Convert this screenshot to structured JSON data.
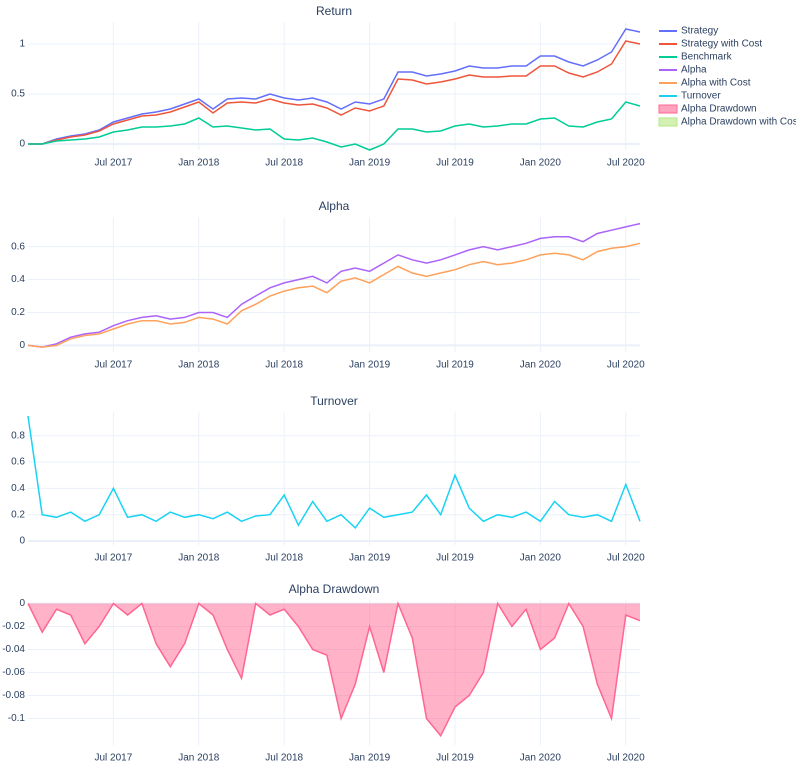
{
  "chart_data": [
    {
      "type": "line",
      "title": "Return",
      "x": [
        "2017-01",
        "2017-02",
        "2017-03",
        "2017-04",
        "2017-05",
        "2017-06",
        "2017-07",
        "2017-08",
        "2017-09",
        "2017-10",
        "2017-11",
        "2017-12",
        "2018-01",
        "2018-02",
        "2018-03",
        "2018-04",
        "2018-05",
        "2018-06",
        "2018-07",
        "2018-08",
        "2018-09",
        "2018-10",
        "2018-11",
        "2018-12",
        "2019-01",
        "2019-02",
        "2019-03",
        "2019-04",
        "2019-05",
        "2019-06",
        "2019-07",
        "2019-08",
        "2019-09",
        "2019-10",
        "2019-11",
        "2019-12",
        "2020-01",
        "2020-02",
        "2020-03",
        "2020-04",
        "2020-05",
        "2020-06",
        "2020-07",
        "2020-08"
      ],
      "series": [
        {
          "name": "Strategy",
          "color": "#636efa",
          "values": [
            0.0,
            0.0,
            0.05,
            0.08,
            0.1,
            0.14,
            0.22,
            0.26,
            0.3,
            0.32,
            0.35,
            0.4,
            0.45,
            0.35,
            0.45,
            0.46,
            0.45,
            0.5,
            0.46,
            0.44,
            0.46,
            0.42,
            0.35,
            0.42,
            0.4,
            0.45,
            0.72,
            0.72,
            0.68,
            0.7,
            0.73,
            0.78,
            0.76,
            0.76,
            0.78,
            0.78,
            0.88,
            0.88,
            0.82,
            0.78,
            0.84,
            0.92,
            1.15,
            1.12
          ]
        },
        {
          "name": "Strategy with Cost",
          "color": "#EF553B",
          "values": [
            0.0,
            0.0,
            0.04,
            0.07,
            0.09,
            0.13,
            0.2,
            0.24,
            0.28,
            0.29,
            0.32,
            0.37,
            0.42,
            0.31,
            0.41,
            0.42,
            0.41,
            0.45,
            0.41,
            0.39,
            0.4,
            0.36,
            0.29,
            0.36,
            0.33,
            0.38,
            0.65,
            0.64,
            0.6,
            0.62,
            0.65,
            0.69,
            0.67,
            0.67,
            0.68,
            0.68,
            0.78,
            0.78,
            0.71,
            0.67,
            0.72,
            0.8,
            1.03,
            1.0
          ]
        },
        {
          "name": "Benchmark",
          "color": "#00cc96",
          "values": [
            0.0,
            0.0,
            0.03,
            0.04,
            0.05,
            0.07,
            0.12,
            0.14,
            0.17,
            0.17,
            0.18,
            0.2,
            0.26,
            0.17,
            0.18,
            0.16,
            0.14,
            0.15,
            0.05,
            0.04,
            0.06,
            0.02,
            -0.03,
            0.0,
            -0.06,
            0.0,
            0.15,
            0.15,
            0.12,
            0.13,
            0.18,
            0.2,
            0.17,
            0.18,
            0.2,
            0.2,
            0.25,
            0.26,
            0.18,
            0.17,
            0.22,
            0.25,
            0.42,
            0.38
          ]
        }
      ],
      "xlim": [
        "2017-01",
        "2020-08"
      ],
      "xticks": [
        {
          "value": "2017-07",
          "label": "Jul 2017"
        },
        {
          "value": "2018-01",
          "label": "Jan 2018"
        },
        {
          "value": "2018-07",
          "label": "Jul 2018"
        },
        {
          "value": "2019-01",
          "label": "Jan 2019"
        },
        {
          "value": "2019-07",
          "label": "Jul 2019"
        },
        {
          "value": "2020-01",
          "label": "Jan 2020"
        },
        {
          "value": "2020-07",
          "label": "Jul 2020"
        }
      ],
      "ylim": [
        -0.06,
        1.22
      ],
      "yticks": [
        0,
        0.5,
        1
      ],
      "grid": true
    },
    {
      "type": "line",
      "title": "Alpha",
      "x": [
        "2017-01",
        "2017-02",
        "2017-03",
        "2017-04",
        "2017-05",
        "2017-06",
        "2017-07",
        "2017-08",
        "2017-09",
        "2017-10",
        "2017-11",
        "2017-12",
        "2018-01",
        "2018-02",
        "2018-03",
        "2018-04",
        "2018-05",
        "2018-06",
        "2018-07",
        "2018-08",
        "2018-09",
        "2018-10",
        "2018-11",
        "2018-12",
        "2019-01",
        "2019-02",
        "2019-03",
        "2019-04",
        "2019-05",
        "2019-06",
        "2019-07",
        "2019-08",
        "2019-09",
        "2019-10",
        "2019-11",
        "2019-12",
        "2020-01",
        "2020-02",
        "2020-03",
        "2020-04",
        "2020-05",
        "2020-06",
        "2020-07",
        "2020-08"
      ],
      "series": [
        {
          "name": "Alpha",
          "color": "#ab63fa",
          "values": [
            0.0,
            -0.01,
            0.01,
            0.05,
            0.07,
            0.08,
            0.12,
            0.15,
            0.17,
            0.18,
            0.16,
            0.17,
            0.2,
            0.2,
            0.17,
            0.25,
            0.3,
            0.35,
            0.38,
            0.4,
            0.42,
            0.38,
            0.45,
            0.47,
            0.45,
            0.5,
            0.55,
            0.52,
            0.5,
            0.52,
            0.55,
            0.58,
            0.6,
            0.58,
            0.6,
            0.62,
            0.65,
            0.66,
            0.66,
            0.63,
            0.68,
            0.7,
            0.72,
            0.74
          ]
        },
        {
          "name": "Alpha with Cost",
          "color": "#FFA15A",
          "values": [
            0.0,
            -0.01,
            0.0,
            0.04,
            0.06,
            0.07,
            0.1,
            0.13,
            0.15,
            0.15,
            0.13,
            0.14,
            0.17,
            0.16,
            0.13,
            0.21,
            0.25,
            0.3,
            0.33,
            0.35,
            0.36,
            0.32,
            0.39,
            0.41,
            0.38,
            0.43,
            0.48,
            0.44,
            0.42,
            0.44,
            0.46,
            0.49,
            0.51,
            0.49,
            0.5,
            0.52,
            0.55,
            0.56,
            0.55,
            0.52,
            0.57,
            0.59,
            0.6,
            0.62
          ]
        }
      ],
      "xlim": [
        "2017-01",
        "2020-08"
      ],
      "xticks": [
        {
          "value": "2017-07",
          "label": "Jul 2017"
        },
        {
          "value": "2018-01",
          "label": "Jan 2018"
        },
        {
          "value": "2018-07",
          "label": "Jul 2018"
        },
        {
          "value": "2019-01",
          "label": "Jan 2019"
        },
        {
          "value": "2019-07",
          "label": "Jul 2019"
        },
        {
          "value": "2020-01",
          "label": "Jan 2020"
        },
        {
          "value": "2020-07",
          "label": "Jul 2020"
        }
      ],
      "ylim": [
        -0.04,
        0.78
      ],
      "yticks": [
        0,
        0.2,
        0.4,
        0.6
      ],
      "grid": true
    },
    {
      "type": "line",
      "title": "Turnover",
      "x": [
        "2017-01",
        "2017-02",
        "2017-03",
        "2017-04",
        "2017-05",
        "2017-06",
        "2017-07",
        "2017-08",
        "2017-09",
        "2017-10",
        "2017-11",
        "2017-12",
        "2018-01",
        "2018-02",
        "2018-03",
        "2018-04",
        "2018-05",
        "2018-06",
        "2018-07",
        "2018-08",
        "2018-09",
        "2018-10",
        "2018-11",
        "2018-12",
        "2019-01",
        "2019-02",
        "2019-03",
        "2019-04",
        "2019-05",
        "2019-06",
        "2019-07",
        "2019-08",
        "2019-09",
        "2019-10",
        "2019-11",
        "2019-12",
        "2020-01",
        "2020-02",
        "2020-03",
        "2020-04",
        "2020-05",
        "2020-06",
        "2020-07",
        "2020-08"
      ],
      "series": [
        {
          "name": "Turnover",
          "color": "#19d3f3",
          "values": [
            0.95,
            0.2,
            0.18,
            0.22,
            0.15,
            0.2,
            0.4,
            0.18,
            0.2,
            0.15,
            0.22,
            0.18,
            0.2,
            0.17,
            0.22,
            0.15,
            0.19,
            0.2,
            0.35,
            0.12,
            0.3,
            0.15,
            0.2,
            0.1,
            0.25,
            0.18,
            0.2,
            0.22,
            0.35,
            0.2,
            0.5,
            0.25,
            0.15,
            0.2,
            0.18,
            0.22,
            0.15,
            0.3,
            0.2,
            0.18,
            0.2,
            0.15,
            0.43,
            0.15
          ]
        }
      ],
      "xlim": [
        "2017-01",
        "2020-08"
      ],
      "xticks": [
        {
          "value": "2017-07",
          "label": "Jul 2017"
        },
        {
          "value": "2018-01",
          "label": "Jan 2018"
        },
        {
          "value": "2018-07",
          "label": "Jul 2018"
        },
        {
          "value": "2019-01",
          "label": "Jan 2019"
        },
        {
          "value": "2019-07",
          "label": "Jul 2019"
        },
        {
          "value": "2020-01",
          "label": "Jan 2020"
        },
        {
          "value": "2020-07",
          "label": "Jul 2020"
        }
      ],
      "ylim": [
        -0.03,
        0.98
      ],
      "yticks": [
        0,
        0.2,
        0.4,
        0.6,
        0.8
      ],
      "grid": true
    },
    {
      "type": "area",
      "title": "Alpha Drawdown",
      "x": [
        "2017-01",
        "2017-02",
        "2017-03",
        "2017-04",
        "2017-05",
        "2017-06",
        "2017-07",
        "2017-08",
        "2017-09",
        "2017-10",
        "2017-11",
        "2017-12",
        "2018-01",
        "2018-02",
        "2018-03",
        "2018-04",
        "2018-05",
        "2018-06",
        "2018-07",
        "2018-08",
        "2018-09",
        "2018-10",
        "2018-11",
        "2018-12",
        "2019-01",
        "2019-02",
        "2019-03",
        "2019-04",
        "2019-05",
        "2019-06",
        "2019-07",
        "2019-08",
        "2019-09",
        "2019-10",
        "2019-11",
        "2019-12",
        "2020-01",
        "2020-02",
        "2020-03",
        "2020-04",
        "2020-05",
        "2020-06",
        "2020-07",
        "2020-08"
      ],
      "series": [
        {
          "name": "Alpha Drawdown",
          "color": "#FF6692",
          "values": [
            0,
            -0.025,
            -0.005,
            -0.01,
            -0.035,
            -0.02,
            0,
            -0.01,
            0,
            -0.035,
            -0.055,
            -0.035,
            0,
            -0.01,
            -0.04,
            -0.065,
            0,
            -0.01,
            -0.005,
            -0.02,
            -0.04,
            -0.045,
            -0.1,
            -0.07,
            -0.02,
            -0.06,
            0,
            -0.03,
            -0.1,
            -0.115,
            -0.09,
            -0.08,
            -0.06,
            0,
            -0.02,
            -0.005,
            -0.04,
            -0.03,
            0,
            -0.02,
            -0.07,
            -0.1,
            -0.01,
            -0.015
          ]
        }
      ],
      "xlim": [
        "2017-01",
        "2020-08"
      ],
      "xticks": [
        {
          "value": "2017-07",
          "label": "Jul 2017"
        },
        {
          "value": "2018-01",
          "label": "Jan 2018"
        },
        {
          "value": "2018-07",
          "label": "Jul 2018"
        },
        {
          "value": "2019-01",
          "label": "Jan 2019"
        },
        {
          "value": "2019-07",
          "label": "Jul 2019"
        },
        {
          "value": "2020-01",
          "label": "Jan 2020"
        },
        {
          "value": "2020-07",
          "label": "Jul 2020"
        }
      ],
      "ylim": [
        -0.123,
        0.003
      ],
      "yticks": [
        0,
        -0.02,
        -0.04,
        -0.06,
        -0.08,
        -0.1
      ],
      "grid": true
    }
  ],
  "legend": [
    {
      "name": "Strategy",
      "color": "#636efa",
      "kind": "line"
    },
    {
      "name": "Strategy with Cost",
      "color": "#EF553B",
      "kind": "line"
    },
    {
      "name": "Benchmark",
      "color": "#00cc96",
      "kind": "line"
    },
    {
      "name": "Alpha",
      "color": "#ab63fa",
      "kind": "line"
    },
    {
      "name": "Alpha with Cost",
      "color": "#FFA15A",
      "kind": "line"
    },
    {
      "name": "Turnover",
      "color": "#19d3f3",
      "kind": "line"
    },
    {
      "name": "Alpha Drawdown",
      "color": "#FF6692",
      "kind": "area"
    },
    {
      "name": "Alpha Drawdown with Cost",
      "color": "#B6E880",
      "kind": "area"
    }
  ]
}
